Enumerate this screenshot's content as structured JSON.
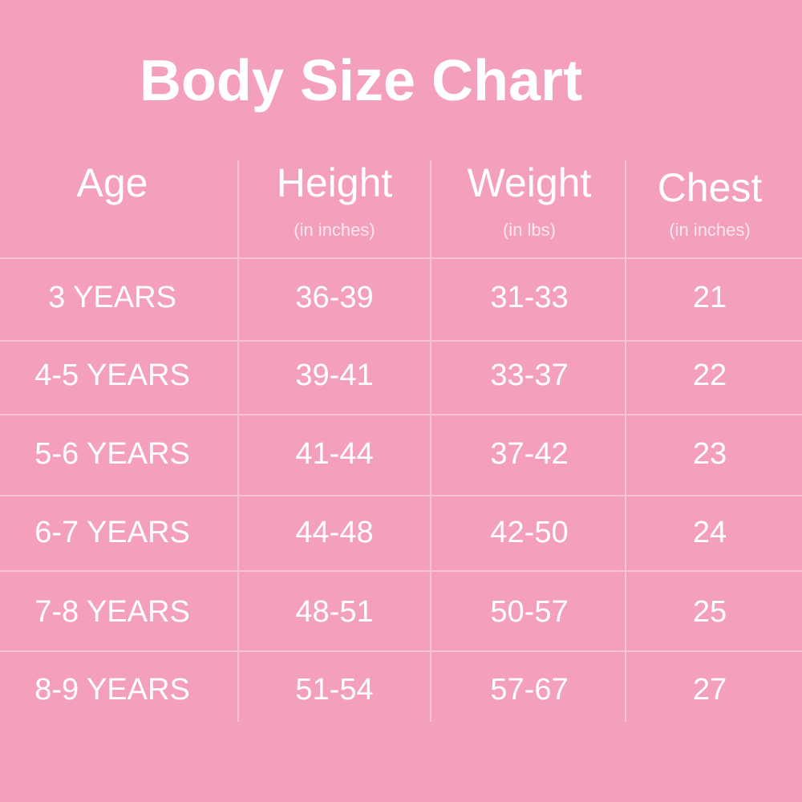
{
  "header": {
    "title": "Body Size Chart"
  },
  "table": {
    "columns": [
      {
        "name": "Age"
      },
      {
        "name": "Height",
        "unit": "(in inches)"
      },
      {
        "name": "Weight",
        "unit": "(in lbs)"
      },
      {
        "name": "Chest",
        "unit": "(in inches)"
      }
    ],
    "rows": [
      [
        "3 YEARS",
        "36-39",
        "31-33",
        "21"
      ],
      [
        "4-5 YEARS",
        "39-41",
        "33-37",
        "22"
      ],
      [
        "5-6 YEARS",
        "41-44",
        "37-42",
        "23"
      ],
      [
        "6-7 YEARS",
        "44-48",
        "42-50",
        "24"
      ],
      [
        "7-8 YEARS",
        "48-51",
        "50-57",
        "25"
      ],
      [
        "8-9 YEARS",
        "51-54",
        "57-67",
        "27"
      ]
    ]
  }
}
